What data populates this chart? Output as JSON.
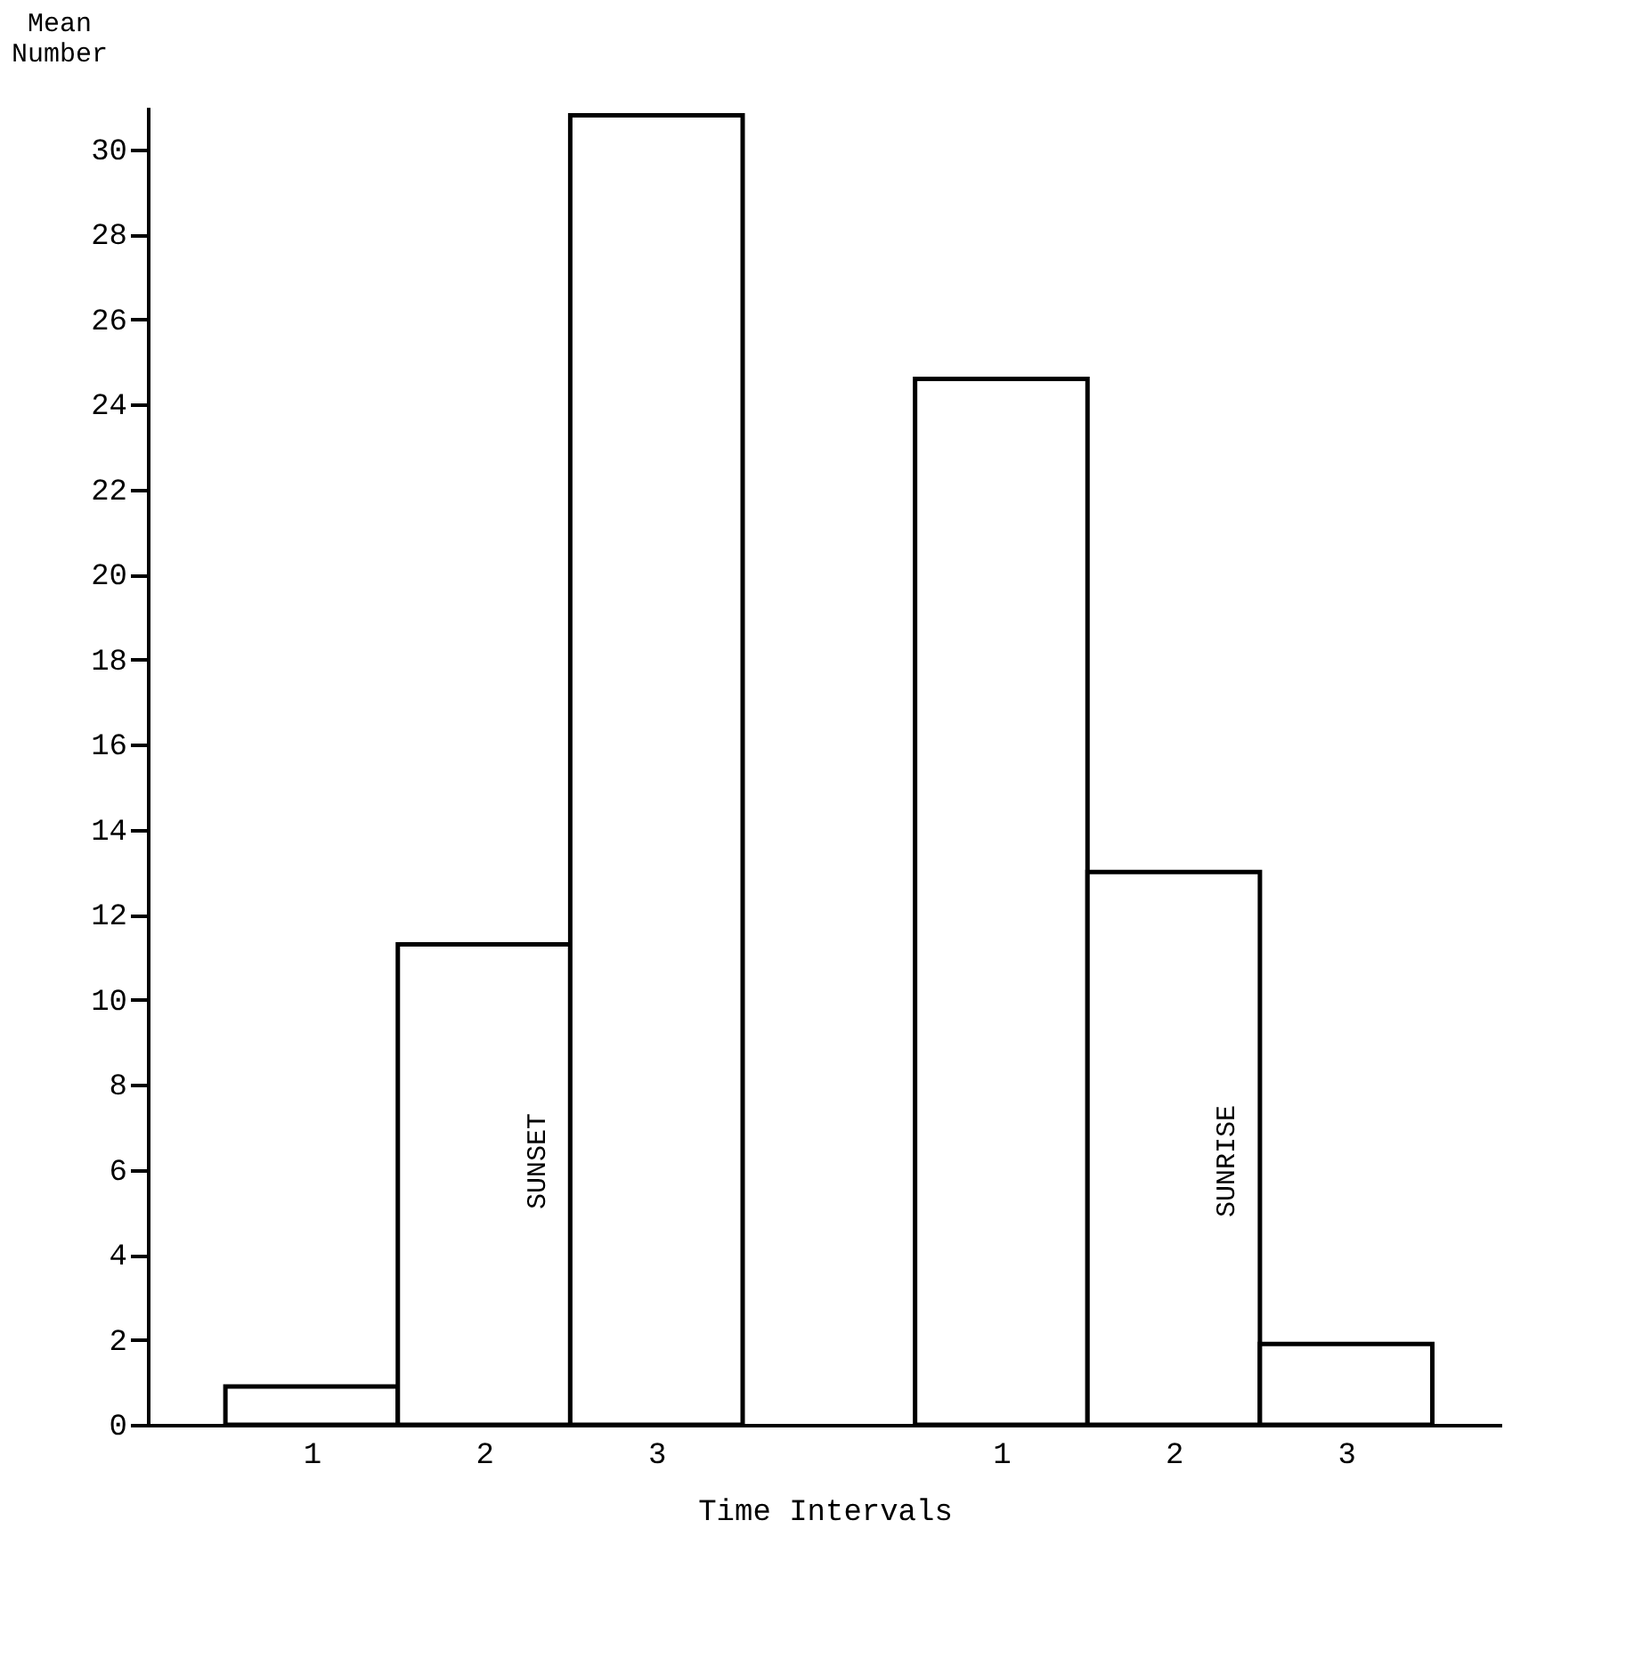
{
  "chart_data": {
    "type": "bar",
    "xlabel": "Time Intervals",
    "ylabel": "Mean Number",
    "categories": [
      "1",
      "2",
      "3",
      null,
      "1",
      "2",
      "3"
    ],
    "values": [
      0.9,
      11.3,
      30.8,
      null,
      24.6,
      13.0,
      1.9
    ],
    "color": "#ffffff",
    "ylim": [
      0,
      31
    ],
    "yticks": [
      0,
      2,
      4,
      6,
      8,
      10,
      12,
      14,
      16,
      18,
      20,
      22,
      24,
      26,
      28,
      30
    ],
    "annotations": [
      "SUNSET",
      "SUNRISE"
    ],
    "grid": false
  }
}
